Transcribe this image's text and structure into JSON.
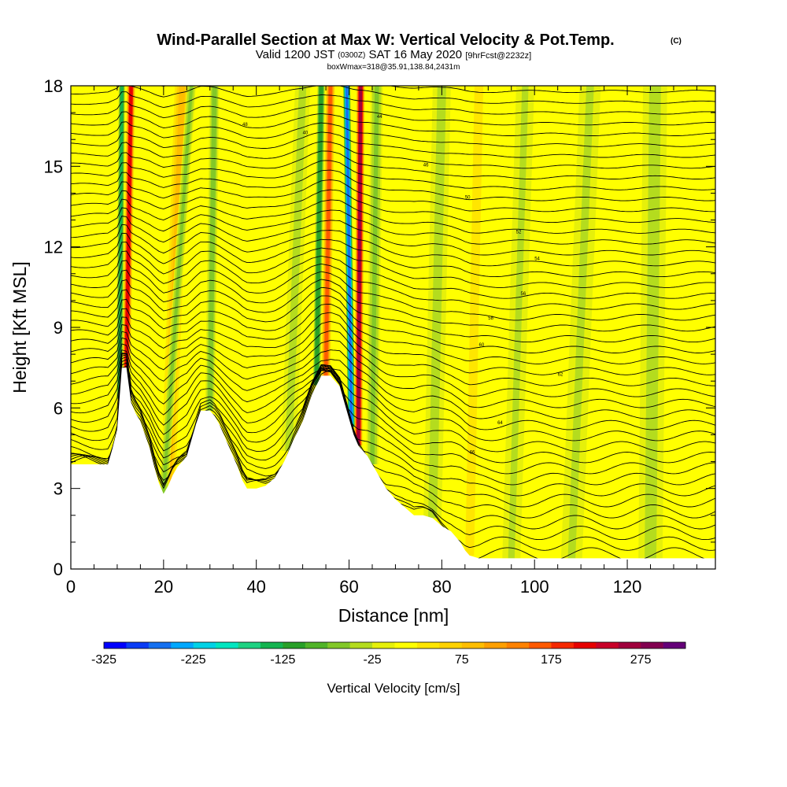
{
  "chart_data": {
    "type": "heatmap",
    "title": "Wind-Parallel Section at Max W: Vertical Velocity & Pot.Temp.",
    "title_mark": "(C)",
    "subtitle": {
      "prefix": "Valid 1200 JST",
      "utc": "(0300Z)",
      "date": "SAT 16 May 2020",
      "forecast": "[9hrFcst@2232z]"
    },
    "box_info": "boxWmax=318@35.91,138.84,2431m",
    "xlabel": "Distance [nm]",
    "ylabel": "Height [Kft MSL]",
    "xlim": [
      0,
      139
    ],
    "ylim": [
      0,
      18
    ],
    "x_ticks": [
      0,
      20,
      40,
      60,
      80,
      100,
      120
    ],
    "y_ticks": [
      0,
      3,
      6,
      9,
      12,
      15,
      18
    ],
    "colorbar": {
      "label": "Vertical Velocity [cm/s]",
      "tick_labels": [
        "-325",
        "-225",
        "-125",
        "-25",
        "75",
        "175",
        "275"
      ],
      "tick_values": [
        -325,
        -225,
        -125,
        -25,
        75,
        175,
        275
      ],
      "range": [
        -325,
        325
      ],
      "colors": [
        "#0000ff",
        "#0a3cf5",
        "#1470f0",
        "#00a8ff",
        "#00d2e6",
        "#00e6c0",
        "#1ed282",
        "#14b450",
        "#28a028",
        "#50b428",
        "#82c828",
        "#b4dc1e",
        "#e6f00a",
        "#ffff00",
        "#ffe600",
        "#ffd200",
        "#ffbe00",
        "#ffa000",
        "#ff8200",
        "#ff5a00",
        "#f52800",
        "#e60000",
        "#c80028",
        "#a0003c",
        "#820050",
        "#640078"
      ]
    },
    "terrain_profile": {
      "x": [
        0,
        4,
        8,
        9,
        10,
        11,
        12,
        13,
        14,
        15,
        16,
        17,
        18,
        19,
        20,
        21,
        22,
        23,
        24,
        25,
        26,
        27,
        28,
        29,
        30,
        31,
        32,
        33,
        34,
        35,
        36,
        37,
        38,
        40,
        42,
        44,
        46,
        48,
        50,
        52,
        54,
        56,
        58,
        59,
        60,
        61,
        62,
        63,
        64,
        66,
        68,
        70,
        72,
        74,
        76,
        78,
        80,
        82,
        84,
        85,
        86,
        88,
        90,
        95,
        100,
        110,
        120,
        130,
        139
      ],
      "height": [
        3.9,
        3.9,
        3.9,
        4.5,
        5.2,
        7.5,
        7.5,
        6.2,
        5.8,
        5.5,
        5.0,
        4.5,
        3.8,
        3.2,
        2.8,
        3.1,
        3.5,
        3.8,
        4.0,
        4.2,
        4.8,
        5.4,
        5.9,
        5.9,
        5.9,
        5.7,
        5.4,
        5.0,
        4.6,
        4.2,
        3.8,
        3.3,
        3.0,
        3.0,
        3.1,
        3.4,
        4.0,
        4.8,
        5.5,
        6.5,
        7.2,
        7.2,
        6.8,
        6.2,
        5.6,
        5.0,
        4.6,
        4.4,
        4.2,
        3.6,
        3.0,
        2.6,
        2.3,
        2.0,
        2.0,
        1.9,
        1.6,
        1.4,
        1.0,
        0.7,
        0.5,
        0.4,
        0.4,
        0.4,
        0.4,
        0.4,
        0.4,
        0.4,
        0.4
      ]
    },
    "vertical_velocity_features": [
      {
        "x_base": 12,
        "x_top": 13,
        "value": 250,
        "width": 1.4
      },
      {
        "x_base": 10.5,
        "x_top": 11,
        "value": -150,
        "width": 1.1
      },
      {
        "x_base": 21,
        "x_top": 24,
        "value": 90,
        "width": 2.8
      },
      {
        "x_base": 20,
        "x_top": 26,
        "value": -60,
        "width": 1.5
      },
      {
        "x_base": 30,
        "x_top": 31,
        "value": -70,
        "width": 1.6
      },
      {
        "x_base": 47,
        "x_top": 50,
        "value": -40,
        "width": 2.5
      },
      {
        "x_base": 55,
        "x_top": 56,
        "value": 200,
        "width": 1.5
      },
      {
        "x_base": 53,
        "x_top": 54,
        "value": -140,
        "width": 1.3
      },
      {
        "x_base": 62,
        "x_top": 62.5,
        "value": 300,
        "width": 1.4
      },
      {
        "x_base": 60.5,
        "x_top": 59.5,
        "value": -320,
        "width": 1.2
      },
      {
        "x_base": 65,
        "x_top": 66,
        "value": -60,
        "width": 2.0
      },
      {
        "x_base": 78,
        "x_top": 80,
        "value": -40,
        "width": 3.0
      },
      {
        "x_base": 86,
        "x_top": 88,
        "value": 40,
        "width": 3.0
      },
      {
        "x_base": 95,
        "x_top": 98,
        "value": -30,
        "width": 3.0
      },
      {
        "x_base": 108,
        "x_top": 112,
        "value": -30,
        "width": 3.5
      },
      {
        "x_base": 125,
        "x_top": 126,
        "value": -35,
        "width": 4.0
      }
    ],
    "theta_contours": {
      "levels_count": 44,
      "base_height_kft": 0.6,
      "spacing_kft": 0.4,
      "labels": [
        "48",
        "40",
        "44",
        "46",
        "50",
        "52",
        "54",
        "56",
        "58",
        "60",
        "62",
        "64",
        "66"
      ]
    },
    "grid": false,
    "legend": "colorbar-bottom"
  }
}
